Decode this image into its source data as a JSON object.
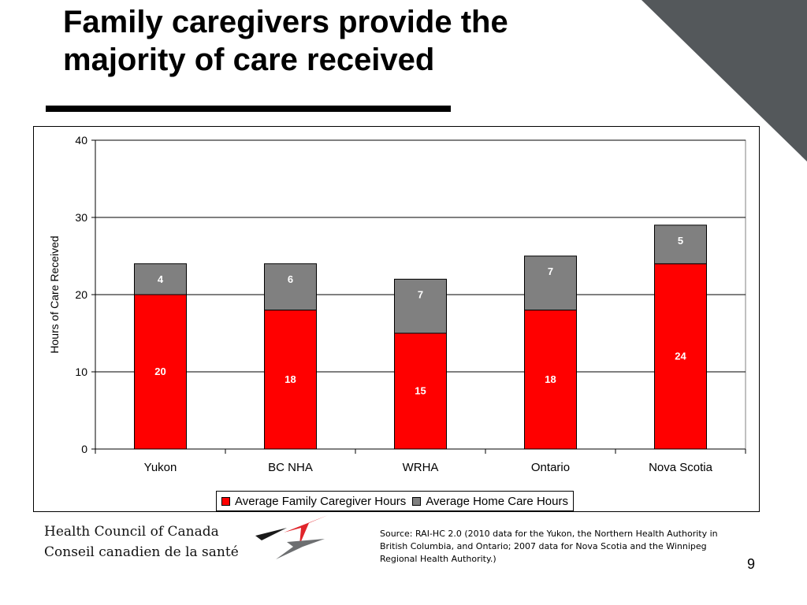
{
  "slide": {
    "title": "Family caregivers provide the majority of care received",
    "source": "Source: RAI-HC 2.0 (2010 data for the Yukon, the Northern Health Authority in British Columbia, and Ontario; 2007 data for Nova Scotia and the Winnipeg Regional Health Authority.)",
    "page_number": "9",
    "organization": {
      "name_en": "Health Council of Canada",
      "name_fr": "Conseil canadien de la santé"
    },
    "colors": {
      "corner_triangle": "#54585b",
      "logo_red": "#e0252b",
      "logo_gray": "#6d6f71",
      "logo_black": "#1a1a1a"
    }
  },
  "chart_data": {
    "type": "bar",
    "stacked": true,
    "categories": [
      "Yukon",
      "BC NHA",
      "WRHA",
      "Ontario",
      "Nova Scotia"
    ],
    "series": [
      {
        "name": "Average Family Caregiver Hours",
        "values": [
          20,
          18,
          15,
          18,
          24
        ],
        "color": "#ff0000",
        "label_color": "#ffffff"
      },
      {
        "name": "Average Home Care Hours",
        "values": [
          4,
          6,
          7,
          7,
          5
        ],
        "color": "#808080",
        "label_color": "#ffffff"
      }
    ],
    "ylabel": "Hours of Care Received",
    "xlabel": "",
    "ylim": [
      0,
      40
    ],
    "yticks": [
      0,
      10,
      20,
      30,
      40
    ],
    "grid": true,
    "legend_position": "bottom"
  }
}
